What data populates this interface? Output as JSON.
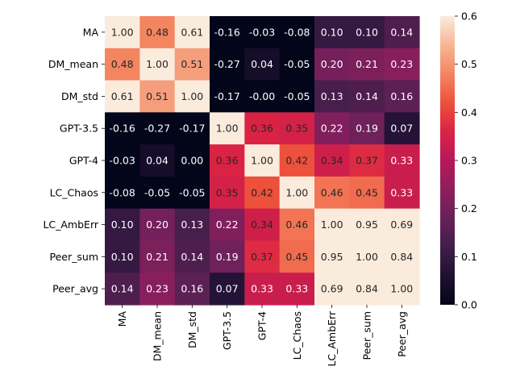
{
  "chart_data": {
    "type": "heatmap",
    "title": "",
    "xlabel": "",
    "ylabel": "",
    "rows": [
      "MA",
      "DM_mean",
      "DM_std",
      "GPT-3.5",
      "GPT-4",
      "LC_Chaos",
      "LC_AmbErr",
      "Peer_sum",
      "Peer_avg"
    ],
    "cols": [
      "MA",
      "DM_mean",
      "DM_std",
      "GPT-3.5",
      "GPT-4",
      "LC_Chaos",
      "LC_AmbErr",
      "Peer_sum",
      "Peer_avg"
    ],
    "values": [
      [
        1.0,
        0.48,
        0.61,
        -0.16,
        -0.03,
        -0.08,
        0.1,
        0.1,
        0.14
      ],
      [
        0.48,
        1.0,
        0.51,
        -0.27,
        0.04,
        -0.05,
        0.2,
        0.21,
        0.23
      ],
      [
        0.61,
        0.51,
        1.0,
        -0.17,
        -0.0,
        -0.05,
        0.13,
        0.14,
        0.16
      ],
      [
        -0.16,
        -0.27,
        -0.17,
        1.0,
        0.36,
        0.35,
        0.22,
        0.19,
        0.07
      ],
      [
        -0.03,
        0.04,
        -0.0,
        0.36,
        1.0,
        0.42,
        0.34,
        0.37,
        0.33
      ],
      [
        -0.08,
        -0.05,
        -0.05,
        0.35,
        0.42,
        1.0,
        0.46,
        0.45,
        0.33
      ],
      [
        0.1,
        0.2,
        0.13,
        0.22,
        0.34,
        0.46,
        1.0,
        0.95,
        0.69
      ],
      [
        0.1,
        0.21,
        0.14,
        0.19,
        0.37,
        0.45,
        0.95,
        1.0,
        0.84
      ],
      [
        0.14,
        0.23,
        0.16,
        0.07,
        0.33,
        0.33,
        0.69,
        0.84,
        1.0
      ]
    ],
    "vmin": 0.0,
    "vmax": 0.6,
    "colormap": "rocket",
    "colorbar_ticks": [
      "0.0",
      "0.1",
      "0.2",
      "0.3",
      "0.4",
      "0.5",
      "0.6"
    ],
    "annotation_format": "2 decimals"
  }
}
